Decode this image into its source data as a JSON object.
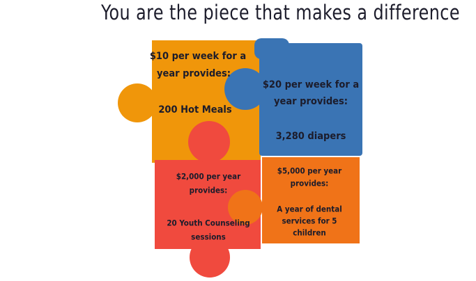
{
  "title": "You are the piece that makes a difference",
  "pieces": [
    {
      "heading_lines": [
        "$10 per week for a",
        "year provides:"
      ],
      "result_lines": [
        "200 Hot Meals"
      ]
    },
    {
      "heading_lines": [
        "$20 per week for a",
        "year provides:"
      ],
      "result_lines": [
        "3,280 diapers"
      ]
    },
    {
      "heading_lines": [
        "$2,000 per year",
        "provides:"
      ],
      "result_lines": [
        "20 Youth Counseling",
        "sessions"
      ]
    },
    {
      "heading_lines": [
        "$5,000 per year",
        "provides:"
      ],
      "result_lines": [
        "A year of dental",
        "services for 5",
        "children"
      ]
    }
  ]
}
